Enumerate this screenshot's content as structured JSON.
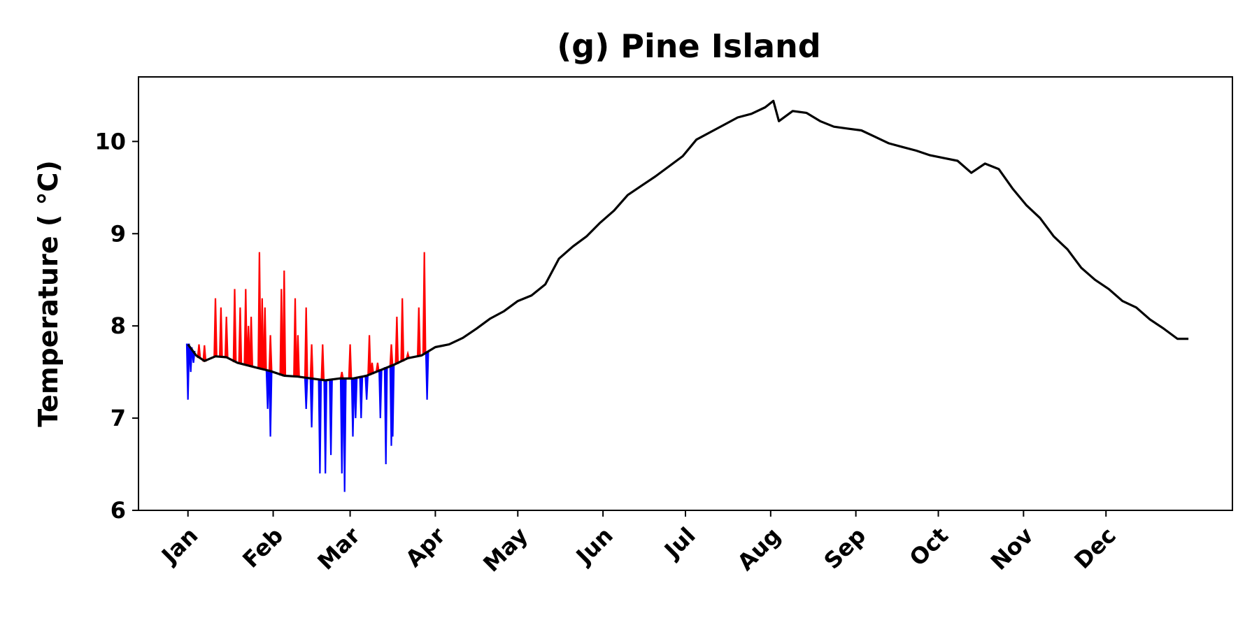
{
  "chart_data": {
    "type": "line",
    "title": "(g) Pine Island",
    "ylabel": "Temperature ($^\\circ$C)",
    "ylabel_display": "Temperature ( °C)",
    "xlabel": "",
    "ylim": [
      6,
      10.7
    ],
    "xlim": [
      -18,
      380
    ],
    "yticks": [
      6,
      7,
      8,
      9,
      10
    ],
    "xticks": [
      {
        "label": "Jan",
        "day": 0
      },
      {
        "label": "Feb",
        "day": 31
      },
      {
        "label": "Mar",
        "day": 59
      },
      {
        "label": "Apr",
        "day": 90
      },
      {
        "label": "May",
        "day": 120
      },
      {
        "label": "Jun",
        "day": 151
      },
      {
        "label": "Jul",
        "day": 181
      },
      {
        "label": "Aug",
        "day": 212
      },
      {
        "label": "Sep",
        "day": 243
      },
      {
        "label": "Oct",
        "day": 273
      },
      {
        "label": "Nov",
        "day": 304
      },
      {
        "label": "Dec",
        "day": 334
      }
    ],
    "colors": {
      "climatology": "#000000",
      "above": "#ff0000",
      "below": "#0000ff"
    },
    "series": [
      {
        "role": "climatology",
        "x": [
          0,
          3,
          6,
          10,
          14,
          18,
          22,
          26,
          30,
          35,
          40,
          45,
          50,
          55,
          60,
          65,
          70,
          75,
          80,
          85,
          90,
          95,
          100,
          105,
          110,
          115,
          120,
          125,
          130,
          135,
          140,
          145,
          150,
          155,
          160,
          165,
          170,
          175,
          180,
          185,
          190,
          195,
          200,
          205,
          210,
          213,
          215,
          220,
          225,
          230,
          235,
          240,
          245,
          250,
          255,
          260,
          265,
          270,
          275,
          280,
          285,
          290,
          295,
          300,
          305,
          310,
          315,
          320,
          325,
          330,
          335,
          340,
          345,
          350,
          355,
          360,
          364
        ],
        "y": [
          7.8,
          7.68,
          7.62,
          7.67,
          7.66,
          7.6,
          7.57,
          7.54,
          7.51,
          7.46,
          7.45,
          7.43,
          7.41,
          7.43,
          7.43,
          7.46,
          7.52,
          7.58,
          7.65,
          7.68,
          7.77,
          7.8,
          7.87,
          7.97,
          8.08,
          8.16,
          8.27,
          8.33,
          8.45,
          8.73,
          8.86,
          8.97,
          9.12,
          9.25,
          9.42,
          9.52,
          9.62,
          9.73,
          9.84,
          10.02,
          10.1,
          10.18,
          10.26,
          10.3,
          10.37,
          10.44,
          10.22,
          10.33,
          10.31,
          10.22,
          10.16,
          10.14,
          10.12,
          10.05,
          9.98,
          9.94,
          9.9,
          9.85,
          9.82,
          9.79,
          9.66,
          9.76,
          9.7,
          9.49,
          9.31,
          9.17,
          8.97,
          8.83,
          8.63,
          8.5,
          8.4,
          8.27,
          8.2,
          8.07,
          7.97,
          7.86,
          7.86
        ]
      },
      {
        "role": "above",
        "x": [
          4,
          6,
          10,
          12,
          14,
          17,
          19,
          21,
          22,
          23,
          26,
          27,
          28,
          30,
          34,
          35,
          39,
          40,
          43,
          45,
          49,
          56,
          59,
          66,
          67,
          69,
          74,
          76,
          78,
          80,
          84,
          86
        ],
        "y": [
          7.8,
          7.79,
          8.3,
          8.2,
          8.1,
          8.4,
          8.2,
          8.4,
          8.0,
          8.1,
          8.8,
          8.3,
          8.2,
          7.9,
          8.4,
          8.6,
          8.3,
          7.9,
          8.2,
          7.8,
          7.8,
          7.5,
          7.8,
          7.9,
          7.6,
          7.6,
          7.8,
          8.1,
          8.3,
          7.7,
          8.2,
          8.8
        ]
      },
      {
        "role": "below",
        "x": [
          0,
          1,
          2,
          29,
          30,
          43,
          45,
          48,
          50,
          52,
          56,
          57,
          60,
          61,
          63,
          65,
          70,
          72,
          74,
          74.5,
          87
        ],
        "y": [
          7.2,
          7.5,
          7.6,
          7.1,
          6.8,
          7.1,
          6.9,
          6.4,
          6.4,
          6.6,
          6.4,
          6.2,
          6.8,
          7.0,
          7.0,
          7.2,
          7.0,
          6.5,
          6.7,
          6.8,
          7.2
        ]
      }
    ]
  }
}
